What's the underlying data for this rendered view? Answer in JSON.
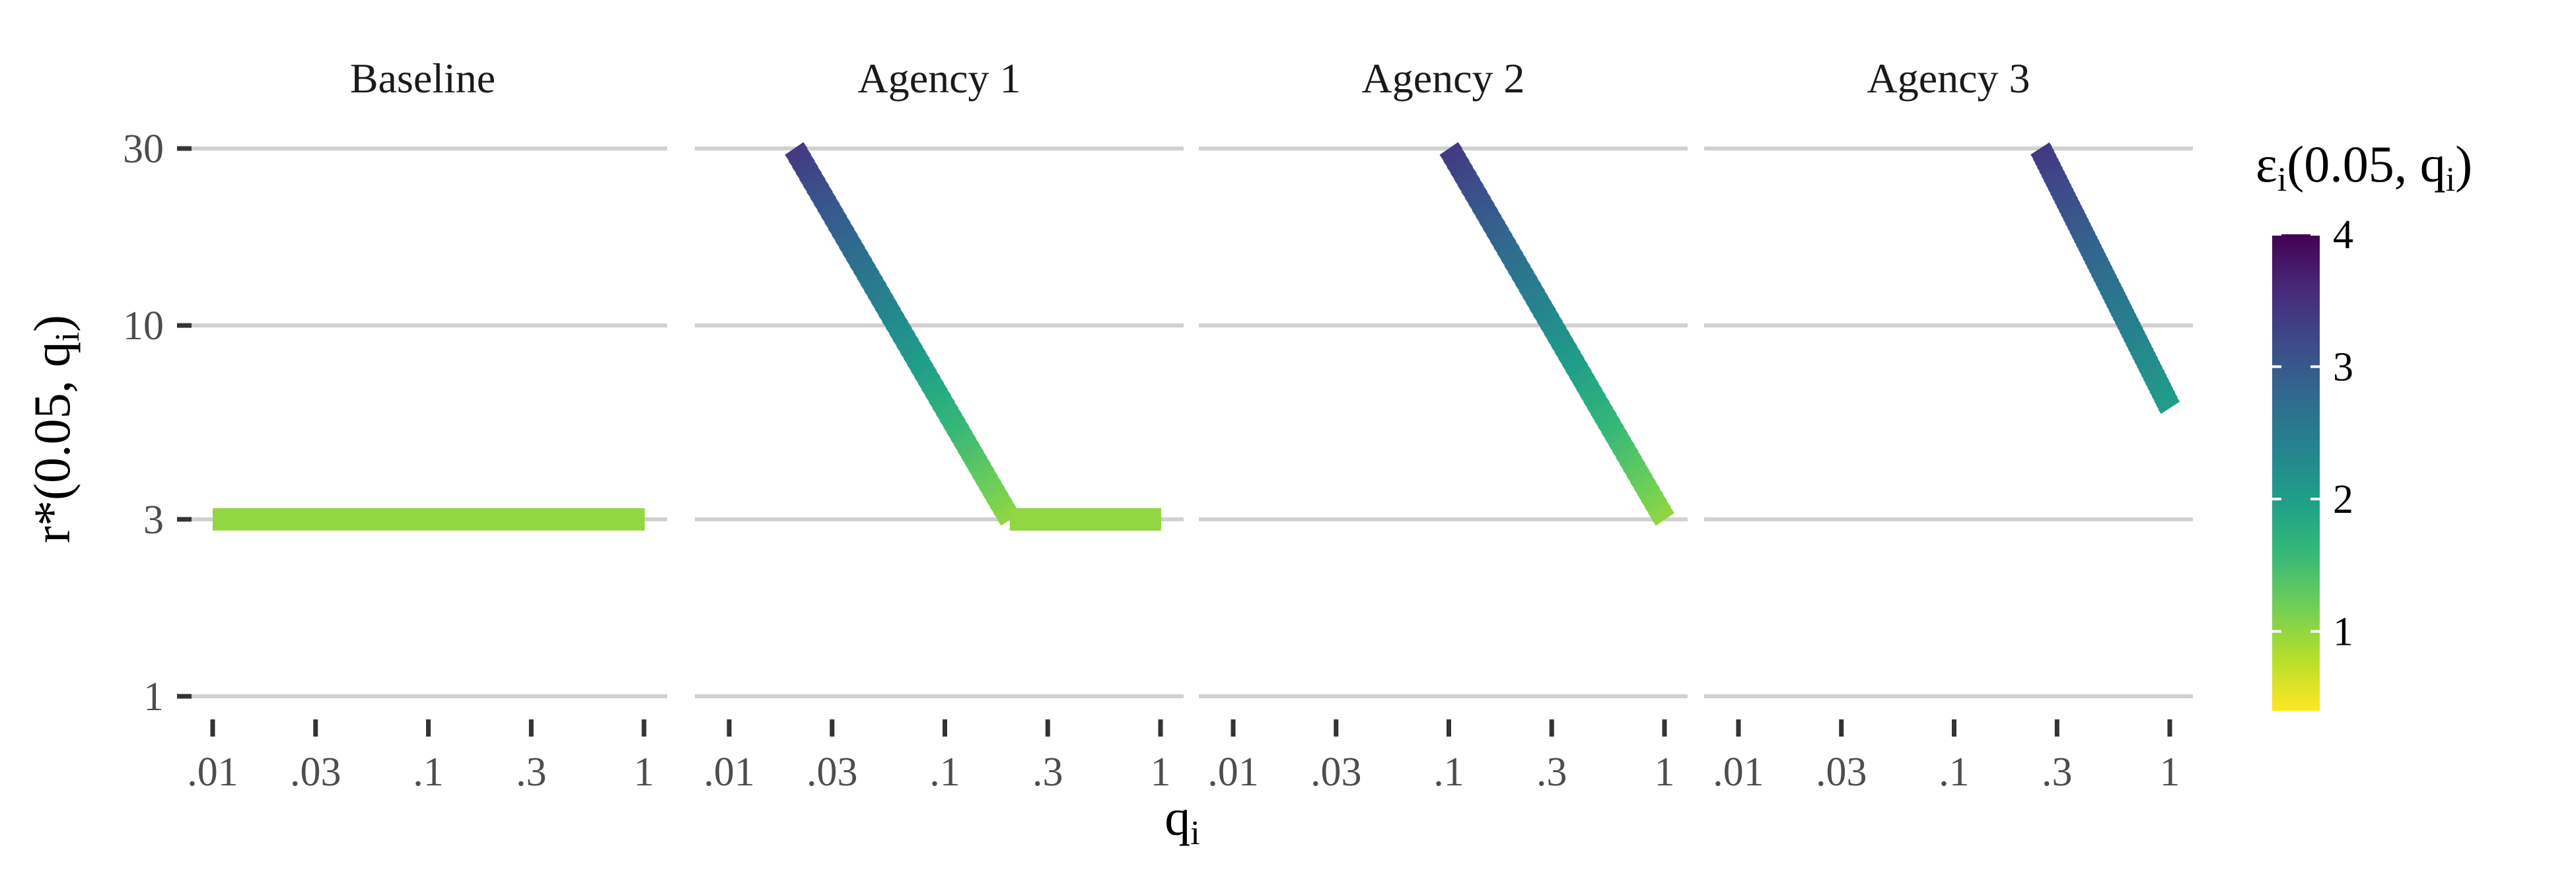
{
  "chart_data": {
    "type": "line",
    "facets": [
      {
        "title": "Baseline",
        "series": [
          {
            "x": [
              0.01,
              1
            ],
            "y": [
              3,
              3
            ],
            "epsilon": [
              1.0,
              1.0
            ]
          }
        ]
      },
      {
        "title": "Agency 1",
        "series": [
          {
            "x": [
              0.02,
              0.2
            ],
            "y": [
              30,
              3
            ],
            "epsilon": [
              3.4,
              1.0
            ]
          },
          {
            "x": [
              0.2,
              1
            ],
            "y": [
              3,
              3
            ],
            "epsilon": [
              1.0,
              1.0
            ]
          }
        ]
      },
      {
        "title": "Agency 2",
        "series": [
          {
            "x": [
              0.1,
              1
            ],
            "y": [
              30,
              3
            ],
            "epsilon": [
              3.4,
              1.0
            ]
          }
        ]
      },
      {
        "title": "Agency 3",
        "series": [
          {
            "x": [
              0.25,
              1
            ],
            "y": [
              30,
              6
            ],
            "epsilon": [
              3.4,
              2.0
            ]
          }
        ]
      }
    ],
    "x_scale": "log",
    "y_scale": "log",
    "xlim": [
      0.01,
      1
    ],
    "ylim": [
      1,
      30
    ],
    "x_ticks": [
      {
        "value": 0.01,
        "label": ".01"
      },
      {
        "value": 0.03,
        "label": ".03"
      },
      {
        "value": 0.1,
        "label": ".1"
      },
      {
        "value": 0.3,
        "label": ".3"
      },
      {
        "value": 1,
        "label": "1"
      }
    ],
    "y_ticks": [
      {
        "value": 30,
        "label": "30"
      },
      {
        "value": 10,
        "label": "10"
      },
      {
        "value": 3,
        "label": "3"
      },
      {
        "value": 1,
        "label": "1"
      }
    ],
    "xlabel": {
      "main": "q",
      "sub": "i"
    },
    "ylabel": {
      "prefix": "r*(0.05, q",
      "sub": "i",
      "suffix": ")"
    },
    "legend": {
      "title": {
        "main": "ε",
        "sub1": "i",
        "mid": "(0.05, q",
        "sub2": "i",
        "end": ")"
      },
      "position": "right",
      "range": [
        0.4,
        4
      ],
      "ticks": [
        {
          "value": 1,
          "label": "1"
        },
        {
          "value": 2,
          "label": "2"
        },
        {
          "value": 3,
          "label": "3"
        },
        {
          "value": 4,
          "label": "4"
        }
      ],
      "colors": [
        "#fde725",
        "#b5de2b",
        "#6ece58",
        "#35b779",
        "#1f9e89",
        "#26828e",
        "#31688e",
        "#3e4989",
        "#482878",
        "#440154"
      ]
    },
    "grid": true
  }
}
